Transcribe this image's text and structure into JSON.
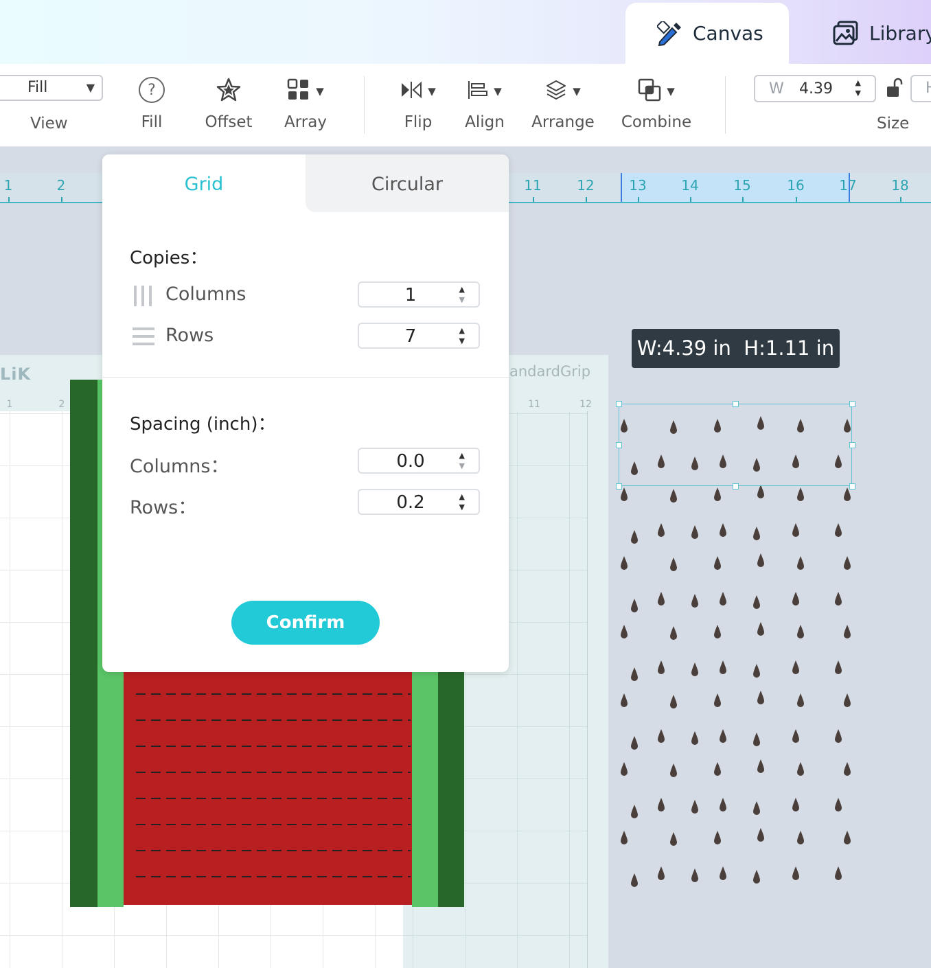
{
  "tabs": {
    "canvas": "Canvas",
    "library": "Library"
  },
  "toolbar": {
    "view_value": "Fill",
    "view_label": "View",
    "fill": "Fill",
    "offset": "Offset",
    "array": "Array",
    "flip": "Flip",
    "align": "Align",
    "arrange": "Arrange",
    "combine": "Combine",
    "w_label": "W",
    "w_value": "4.39",
    "h_label": "H",
    "size_label": "Size"
  },
  "ruler": [
    "1",
    "2",
    "11",
    "12",
    "13",
    "14",
    "15",
    "16",
    "17",
    "18"
  ],
  "mat": {
    "logo": "LiK",
    "brand": "andardGrip",
    "numbers": [
      "1",
      "2",
      "11",
      "12"
    ]
  },
  "dimension_tooltip": "W:4.39 in  H:1.11 in",
  "array_popup": {
    "tab_grid": "Grid",
    "tab_circular": "Circular",
    "copies_title": "Copies：",
    "columns_label": "Columns",
    "columns_value": "1",
    "rows_label": "Rows",
    "rows_value": "7",
    "spacing_title": "Spacing (inch)：",
    "spacing_columns_label": "Columns：",
    "spacing_columns_value": "0.0",
    "spacing_rows_label": "Rows：",
    "spacing_rows_value": "0.2",
    "confirm": "Confirm"
  },
  "colors": {
    "accent": "#22c9d6",
    "watermelon_red": "#b81f20",
    "rind_dark": "#27682a",
    "rind_light": "#5ac466",
    "seed": "#4a3f3a"
  }
}
